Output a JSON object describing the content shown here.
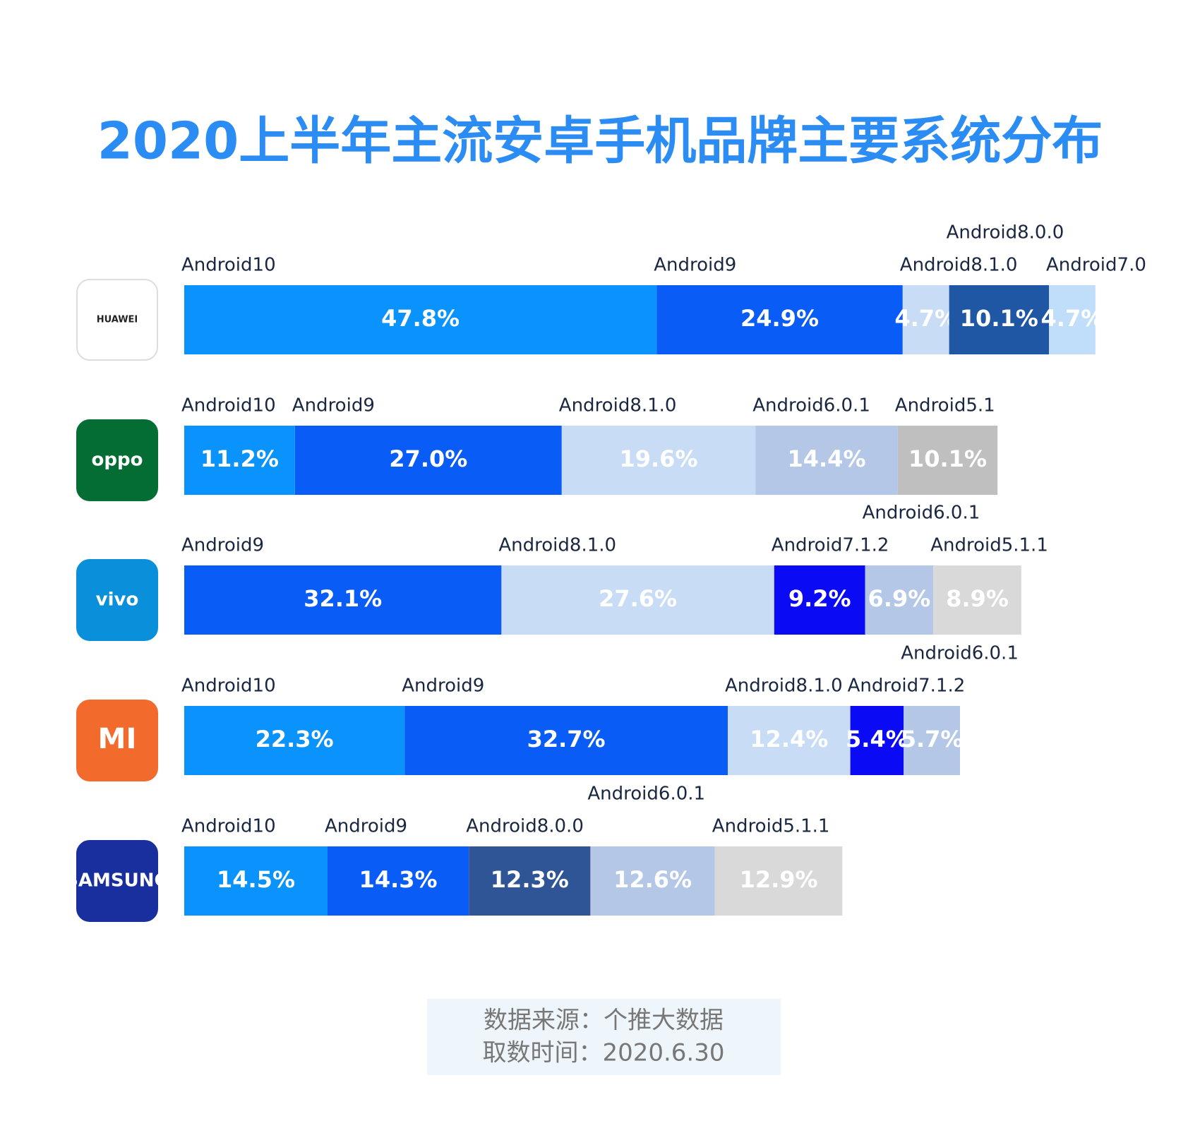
{
  "chart_data": {
    "type": "stacked-bar",
    "title": "2020上半年主流安卓手机品牌主要系统分布",
    "categories": [
      "HUAWEI",
      "oppo",
      "vivo",
      "MI",
      "SAMSUNG"
    ],
    "logo_colors": [
      "#ffffff",
      "#046d34",
      "#0a8fdb",
      "#f26b2c",
      "#1a2f9e"
    ],
    "bars": [
      {
        "segments": [
          {
            "name": "Android10",
            "color": "#0a93fc",
            "value": 47.8,
            "value_label": "47.8%"
          },
          {
            "name": "Android9",
            "color": "#0a5cf7",
            "value": 24.9,
            "value_label": "24.9%"
          },
          {
            "name": "Android8.1.0",
            "color": "#c9dcf5",
            "value": 4.7,
            "value_label": "4.7%"
          },
          {
            "name": "Android8.0.0",
            "color": "#1f57a5",
            "value": 10.1,
            "value_label": "10.1%"
          },
          {
            "name": "Android7.0",
            "color": "#c0defa",
            "value": 4.7,
            "value_label": "4.7%"
          }
        ]
      },
      {
        "segments": [
          {
            "name": "Android10",
            "color": "#0a93fc",
            "value": 11.2,
            "value_label": "11.2%"
          },
          {
            "name": "Android9",
            "color": "#0a5cf7",
            "value": 27.0,
            "value_label": "27.0%"
          },
          {
            "name": "Android8.1.0",
            "color": "#c9dcf5",
            "value": 19.6,
            "value_label": "19.6%"
          },
          {
            "name": "Android6.0.1",
            "color": "#b4c7e7",
            "value": 14.4,
            "value_label": "14.4%"
          },
          {
            "name": "Android5.1",
            "color": "#bfbfbf",
            "value": 10.1,
            "value_label": "10.1%"
          }
        ]
      },
      {
        "segments": [
          {
            "name": "Android9",
            "color": "#0a5cf7",
            "value": 32.1,
            "value_label": "32.1%"
          },
          {
            "name": "Android8.1.0",
            "color": "#c9dcf5",
            "value": 27.6,
            "value_label": "27.6%"
          },
          {
            "name": "Android7.1.2",
            "color": "#0a0af5",
            "value": 9.2,
            "value_label": "9.2%"
          },
          {
            "name": "Android6.0.1",
            "color": "#b4c7e7",
            "value": 6.9,
            "value_label": "6.9%"
          },
          {
            "name": "Android5.1.1",
            "color": "#d9d9d9",
            "value": 8.9,
            "value_label": "8.9%"
          }
        ]
      },
      {
        "segments": [
          {
            "name": "Android10",
            "color": "#0a93fc",
            "value": 22.3,
            "value_label": "22.3%"
          },
          {
            "name": "Android9",
            "color": "#0a5cf7",
            "value": 32.7,
            "value_label": "32.7%"
          },
          {
            "name": "Android8.1.0",
            "color": "#c9dcf5",
            "value": 12.4,
            "value_label": "12.4%"
          },
          {
            "name": "Android7.1.2",
            "color": "#0a0af5",
            "value": 5.4,
            "value_label": "5.4%"
          },
          {
            "name": "Android6.0.1",
            "color": "#b4c7e7",
            "value": 5.7,
            "value_label": "5.7%"
          }
        ]
      },
      {
        "segments": [
          {
            "name": "Android10",
            "color": "#0a93fc",
            "value": 14.5,
            "value_label": "14.5%"
          },
          {
            "name": "Android9",
            "color": "#0a5cf7",
            "value": 14.3,
            "value_label": "14.3%"
          },
          {
            "name": "Android8.0.0",
            "color": "#2f5597",
            "value": 12.3,
            "value_label": "12.3%"
          },
          {
            "name": "Android6.0.1",
            "color": "#b4c7e7",
            "value": 12.6,
            "value_label": "12.6%"
          },
          {
            "name": "Android5.1.1",
            "color": "#d9d9d9",
            "value": 12.9,
            "value_label": "12.9%"
          }
        ]
      }
    ],
    "source": [
      "数据来源：个推大数据",
      "取数时间：2020.6.30"
    ]
  }
}
